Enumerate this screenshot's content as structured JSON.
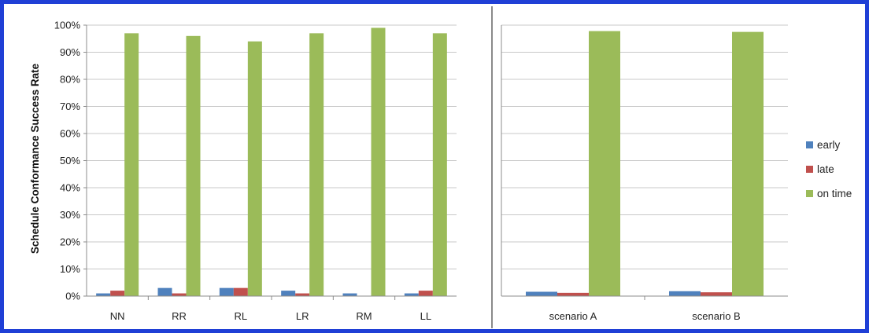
{
  "chart_data": [
    {
      "type": "bar",
      "title": "",
      "xlabel": "",
      "ylabel": "Schedule Conformance Success Rate",
      "ylim": [
        0,
        100
      ],
      "yticks": [
        "0%",
        "10%",
        "20%",
        "30%",
        "40%",
        "50%",
        "60%",
        "70%",
        "80%",
        "90%",
        "100%"
      ],
      "grid": true,
      "categories": [
        "NN",
        "RR",
        "RL",
        "LR",
        "RM",
        "LL"
      ],
      "series": [
        {
          "name": "early",
          "values": [
            1,
            3,
            3,
            2,
            1,
            1
          ]
        },
        {
          "name": "late",
          "values": [
            2,
            1,
            3,
            1,
            0,
            2
          ]
        },
        {
          "name": "on time",
          "values": [
            97,
            96,
            94,
            97,
            99,
            97
          ]
        }
      ]
    },
    {
      "type": "bar",
      "title": "",
      "xlabel": "",
      "ylabel": "",
      "ylim": [
        0,
        100
      ],
      "grid": true,
      "categories": [
        "scenario A",
        "scenario B"
      ],
      "series": [
        {
          "name": "early",
          "values": [
            1.6,
            1.8
          ]
        },
        {
          "name": "late",
          "values": [
            1.2,
            1.4
          ]
        },
        {
          "name": "on time",
          "values": [
            97.8,
            97.5
          ]
        }
      ]
    }
  ],
  "legend": {
    "position": "right",
    "items": [
      {
        "label": "early",
        "color": "#4f81bd"
      },
      {
        "label": "late",
        "color": "#c0504d"
      },
      {
        "label": "on time",
        "color": "#9bbb59"
      }
    ]
  }
}
